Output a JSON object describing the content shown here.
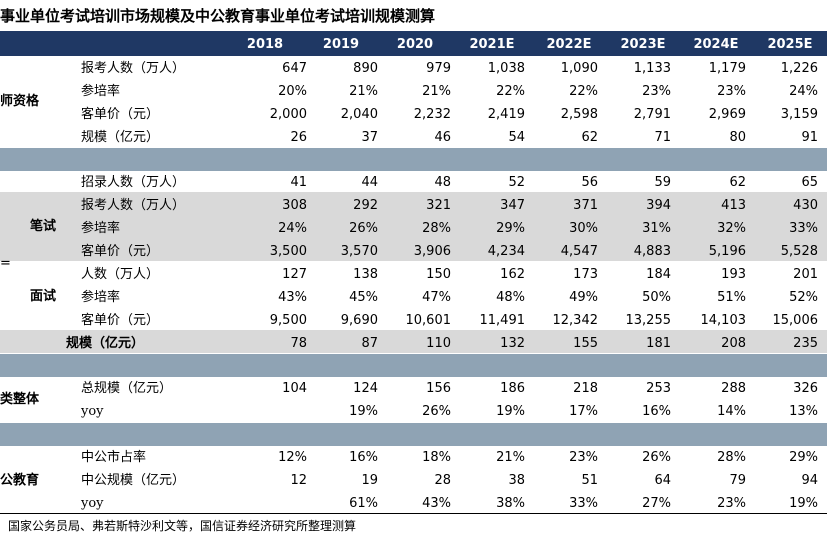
{
  "title": "事业单位考试培训市场规模及中公教育事业单位考试培训规模测算",
  "years": [
    "2018",
    "2019",
    "2020",
    "2021E",
    "2022E",
    "2023E",
    "2024E",
    "2025E"
  ],
  "groups": {
    "teacher": "师资格",
    "written": "笔试",
    "interview": "面试",
    "total": "类整体",
    "offcn": "公教育",
    "stray_mark": "="
  },
  "rows": {
    "t_applicants": {
      "label": "报考人数（万人）",
      "values": [
        "647",
        "890",
        "979",
        "1,038",
        "1,090",
        "1,133",
        "1,179",
        "1,226"
      ]
    },
    "t_train_rate": {
      "label": "参培率",
      "values": [
        "20%",
        "21%",
        "21%",
        "22%",
        "22%",
        "23%",
        "23%",
        "24%"
      ]
    },
    "t_unit_price": {
      "label": "客单价（元）",
      "values": [
        "2,000",
        "2,040",
        "2,232",
        "2,419",
        "2,598",
        "2,791",
        "2,969",
        "3,159"
      ]
    },
    "t_scale": {
      "label": "规模（亿元）",
      "values": [
        "26",
        "37",
        "46",
        "54",
        "62",
        "71",
        "80",
        "91"
      ]
    },
    "w_hired": {
      "label": "招录人数（万人）",
      "values": [
        "41",
        "44",
        "48",
        "52",
        "56",
        "59",
        "62",
        "65"
      ]
    },
    "w_applicants": {
      "label": "报考人数（万人）",
      "values": [
        "308",
        "292",
        "321",
        "347",
        "371",
        "394",
        "413",
        "430"
      ]
    },
    "w_train_rate": {
      "label": "参培率",
      "values": [
        "24%",
        "26%",
        "28%",
        "29%",
        "30%",
        "31%",
        "32%",
        "33%"
      ]
    },
    "w_unit_price": {
      "label": "客单价（元）",
      "values": [
        "3,500",
        "3,570",
        "3,906",
        "4,234",
        "4,547",
        "4,883",
        "5,196",
        "5,528"
      ]
    },
    "i_people": {
      "label": "人数（万人）",
      "values": [
        "127",
        "138",
        "150",
        "162",
        "173",
        "184",
        "193",
        "201"
      ]
    },
    "i_train_rate": {
      "label": "参培率",
      "values": [
        "43%",
        "45%",
        "47%",
        "48%",
        "49%",
        "50%",
        "51%",
        "52%"
      ]
    },
    "i_unit_price": {
      "label": "客单价（元）",
      "values": [
        "9,500",
        "9,690",
        "10,601",
        "11,491",
        "12,342",
        "13,255",
        "14,103",
        "15,006"
      ]
    },
    "s_scale": {
      "label": "规模（亿元）",
      "values": [
        "78",
        "87",
        "110",
        "132",
        "155",
        "181",
        "208",
        "235"
      ]
    },
    "c_total": {
      "label": "总规模（亿元）",
      "values": [
        "104",
        "124",
        "156",
        "186",
        "218",
        "253",
        "288",
        "326"
      ]
    },
    "c_yoy": {
      "label": "yoy",
      "values": [
        "",
        "19%",
        "26%",
        "19%",
        "17%",
        "16%",
        "14%",
        "13%"
      ]
    },
    "o_share": {
      "label": "中公市占率",
      "values": [
        "12%",
        "16%",
        "18%",
        "21%",
        "23%",
        "26%",
        "28%",
        "29%"
      ]
    },
    "o_scale": {
      "label": "中公规模（亿元）",
      "values": [
        "12",
        "19",
        "28",
        "38",
        "51",
        "64",
        "79",
        "94"
      ]
    },
    "o_yoy": {
      "label": "yoy",
      "values": [
        "",
        "61%",
        "43%",
        "38%",
        "33%",
        "27%",
        "23%",
        "19%"
      ]
    }
  },
  "footer": "国家公务员局、弗若斯特沙利文等，国信证券经济研究所整理测算",
  "colors": {
    "header_bg": "#1f3864",
    "separator": "#8fa3b4",
    "shade": "#d9d9d9"
  }
}
